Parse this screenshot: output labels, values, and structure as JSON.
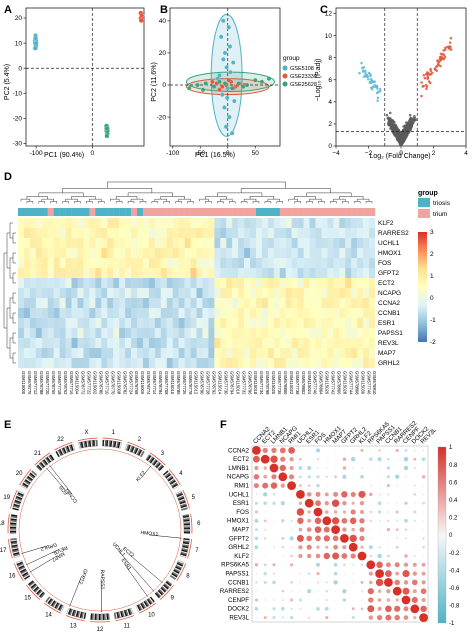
{
  "panels": {
    "A": "A",
    "B": "B",
    "C": "C",
    "D": "D",
    "E": "E",
    "F": "F"
  },
  "chart_data": [
    {
      "id": "A",
      "type": "scatter",
      "xlabel": "PC1 (90.4%)",
      "ylabel": "PC2 (5.4%)",
      "xlim": [
        -118,
        92
      ],
      "ylim": [
        -31,
        24
      ],
      "xticks": [
        -100,
        0
      ],
      "xtick_labels": [
        "-100",
        "0"
      ],
      "yticks": [
        -30,
        -20,
        -10,
        0,
        10,
        20
      ],
      "ytick_labels": [
        "-30",
        "-20",
        "-10",
        "0",
        "10",
        "20"
      ],
      "ref_lines": {
        "x": 0,
        "y": 0
      },
      "series": [
        {
          "color": "#4fb3c8",
          "x": [
            -101,
            -102,
            -100,
            -101,
            -102,
            -100,
            -101,
            -102,
            -100,
            -101,
            -101,
            -100
          ],
          "y": [
            12,
            11,
            10,
            9,
            8,
            11,
            13,
            10,
            9,
            12,
            8,
            10
          ]
        },
        {
          "color": "#e2573a",
          "x": [
            87,
            88,
            86,
            87,
            88,
            86,
            87,
            88,
            86,
            87,
            88,
            87
          ],
          "y": [
            22,
            21,
            20,
            22,
            21,
            20,
            19,
            21,
            22,
            20,
            21,
            19
          ]
        },
        {
          "color": "#3aa27b",
          "x": [
            26,
            27,
            25,
            26,
            27,
            25,
            26,
            27,
            25,
            26,
            27,
            26
          ],
          "y": [
            -23,
            -24,
            -25,
            -26,
            -24,
            -23,
            -25,
            -26,
            -24,
            -27,
            -25,
            -24
          ]
        }
      ]
    },
    {
      "id": "B",
      "type": "scatter",
      "xlabel": "PC1 (16.5%)",
      "ylabel": "PC2 (11.6%)",
      "xlim": [
        -105,
        95
      ],
      "ylim": [
        -38,
        48
      ],
      "xticks": [
        -100,
        -50,
        0,
        50
      ],
      "xtick_labels": [
        "-100",
        "-50",
        "0",
        "50"
      ],
      "yticks": [
        -20,
        0,
        20,
        40
      ],
      "ytick_labels": [
        "-20",
        "0",
        "20",
        "40"
      ],
      "legend": {
        "title": "group",
        "placement": "right",
        "items": [
          {
            "label": "GSE5108",
            "color": "#4fb3c8"
          },
          {
            "label": "GSE23339",
            "color": "#e2573a"
          },
          {
            "label": "GSE25628",
            "color": "#3aa27b"
          }
        ]
      },
      "ellipses": [
        {
          "cx": -2,
          "cy": 6,
          "rx": 28,
          "ry": 38,
          "color": "#4fb3c8"
        },
        {
          "cx": 0,
          "cy": -1,
          "rx": 75,
          "ry": 5,
          "color": "#e2573a"
        },
        {
          "cx": 5,
          "cy": 2,
          "rx": 80,
          "ry": 6,
          "color": "#3aa27b"
        }
      ],
      "series": [
        {
          "name": "GSE5108",
          "color": "#4fb3c8",
          "x": [
            -8,
            2,
            -12,
            4,
            -5,
            10,
            -2,
            -15,
            6,
            0,
            -10,
            12,
            -6,
            3,
            -3,
            8,
            -18,
            5,
            -1,
            -8
          ],
          "y": [
            40,
            36,
            30,
            24,
            20,
            14,
            11,
            6,
            2,
            -2,
            -6,
            -10,
            -14,
            -20,
            -26,
            -30,
            4,
            8,
            -8,
            16
          ]
        },
        {
          "name": "GSE23339",
          "color": "#e2573a",
          "x": [
            -20,
            -10,
            -3,
            6,
            14,
            22,
            30,
            -28,
            2,
            10,
            18,
            -15
          ],
          "y": [
            1,
            -1,
            0,
            2,
            -1,
            1,
            0,
            2,
            3,
            -2,
            0,
            -3
          ]
        },
        {
          "name": "GSE25628",
          "color": "#3aa27b",
          "x": [
            -70,
            -55,
            -40,
            -25,
            -15,
            -5,
            8,
            20,
            35,
            50,
            62,
            75,
            -45,
            28
          ],
          "y": [
            -2,
            0,
            1,
            -1,
            2,
            1,
            -2,
            1,
            0,
            3,
            2,
            4,
            -3,
            -1
          ]
        }
      ]
    },
    {
      "id": "C",
      "type": "scatter",
      "xlabel": "Log₂ (Fold Change)",
      "ylabel": "−Log₁₀ (P.adj)",
      "xlim": [
        -4,
        4
      ],
      "ylim": [
        0,
        12.5
      ],
      "xticks": [
        -4,
        -2,
        0,
        2,
        4
      ],
      "xtick_labels": [
        "−4",
        "−2",
        "0",
        "2",
        "4"
      ],
      "yticks": [
        0,
        2,
        4,
        6,
        8,
        10,
        12
      ],
      "ytick_labels": [
        "0",
        "2",
        "4",
        "6",
        "8",
        "10",
        "12"
      ],
      "thresholds": {
        "x": [
          -1,
          1
        ],
        "y": 1.3
      }
    },
    {
      "id": "D",
      "type": "heatmap",
      "rows": [
        "KLF2",
        "RARRES2",
        "UCHL1",
        "HMOX1",
        "FOS",
        "GFPT2",
        "ECT2",
        "NCAPG",
        "CCNA2",
        "CCNB1",
        "ESR1",
        "PAPSS1",
        "REV3L",
        "MAP7",
        "GRHL2"
      ],
      "legend": {
        "title": "group",
        "items": [
          {
            "label": "triosis",
            "color": "#4fb3c8"
          },
          {
            "label": "trium",
            "color": "#f0a4a0"
          }
        ]
      },
      "colorbar": {
        "ticks": [
          3,
          2,
          1,
          0,
          -1,
          -2
        ],
        "tick_labels": [
          "3",
          "2",
          "1",
          "0",
          "-1",
          "-2"
        ],
        "colors": [
          "#d73027",
          "#fc8d59",
          "#fee090",
          "#ffffbf",
          "#e0f3f8",
          "#91bfdb",
          "#4575b4"
        ]
      },
      "n_columns": 60,
      "column_labels": [
        "GSM115000",
        "GSM578776",
        "GSM577712",
        "GSM578788",
        "GSM577720",
        "GSM578766",
        "GSM577718",
        "GSM578762",
        "GSM577716",
        "GSM115004",
        "GSM578772",
        "GSM577722",
        "GSM115002",
        "GSM578780",
        "GSM577710",
        "GSM578770",
        "GSM115008",
        "GSM578782",
        "GSM577724",
        "GSM578768",
        "GSM115006",
        "GSM578774",
        "GSM577714",
        "GSM578784",
        "GSM577708",
        "GSM115010",
        "GSM578786",
        "GSM577726",
        "GSM578778",
        "GSM115012",
        "GSM578790",
        "GSM577728",
        "GSM578792",
        "GSM115014",
        "GSM577730",
        "GSM578794",
        "GSM115016",
        "GSM577732",
        "GSM578796",
        "GSM115018",
        "GSM577734",
        "GSM578798",
        "GSM115020",
        "GSM577736",
        "GSM578800",
        "GSM115022",
        "GSM577738",
        "GSM578802",
        "GSM115024",
        "GSM577740",
        "GSM578804",
        "GSM115026",
        "GSM577742",
        "GSM578806",
        "GSM115028",
        "GSM577744",
        "GSM578808",
        "GSM115030",
        "GSM577746",
        "GSM578810"
      ]
    },
    {
      "id": "E",
      "type": "circos",
      "chromosomes": [
        "1",
        "2",
        "3",
        "4",
        "5",
        "6",
        "7",
        "8",
        "9",
        "10",
        "11",
        "12",
        "13",
        "14",
        "15",
        "16",
        "17",
        "18",
        "19",
        "20",
        "21",
        "22",
        "X"
      ],
      "genes": [
        "KLF2",
        "HMOX1",
        "ECT2",
        "UCHL1",
        "RAPSS1",
        "ESR1",
        "FOS",
        "CCNB1",
        "GFPT2",
        "GRHL2",
        "MAP7",
        "REV3L"
      ]
    },
    {
      "id": "F",
      "type": "correlation",
      "genes": [
        "CCNA2",
        "ECT2",
        "LMNB1",
        "NCAPG",
        "RMI1",
        "UCHL1",
        "ESR1",
        "FOS",
        "HMOX1",
        "MAP7",
        "GFPT2",
        "GRHL2",
        "KLF2",
        "RPS6KA5",
        "PAPSS1",
        "CCNB1",
        "RARRES2",
        "CENPF",
        "DOCK2",
        "REV3L"
      ],
      "colorbar": {
        "ticks": [
          1,
          0.8,
          0.6,
          0.4,
          0.2,
          0,
          -0.2,
          -0.4,
          -0.6,
          -0.8,
          -1
        ],
        "tick_labels": [
          "1",
          "0.8",
          "0.6",
          "0.4",
          "0.2",
          "0",
          "-0.2",
          "-0.4",
          "-0.6",
          "-0.8",
          "-1"
        ]
      }
    }
  ]
}
